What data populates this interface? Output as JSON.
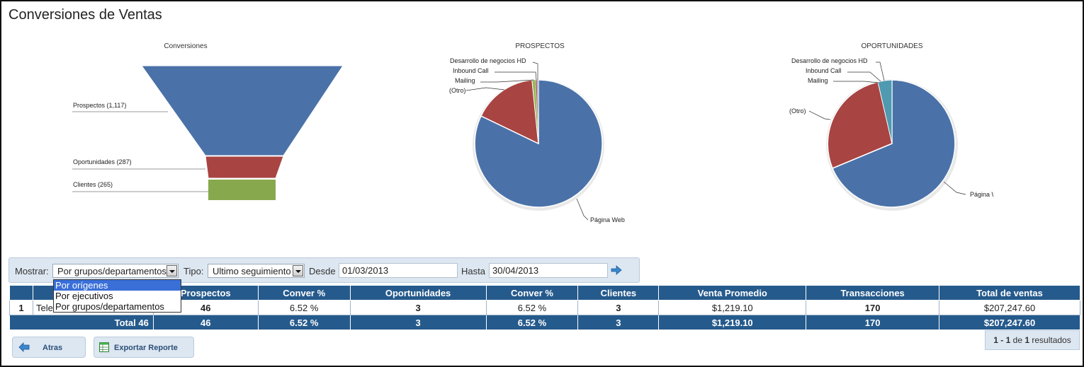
{
  "page": {
    "title": "Conversiones de Ventas"
  },
  "charts": {
    "funnel": {
      "title": "Conversiones",
      "stages": [
        {
          "label": "Prospectos",
          "value": "(1,117)",
          "color": "#4a72a8"
        },
        {
          "label": "Oportunidades",
          "value": "(287)",
          "color": "#a84442"
        },
        {
          "label": "Clientes",
          "value": "(265)",
          "color": "#88a84e"
        }
      ]
    },
    "prospectos": {
      "title": "PROSPECTOS",
      "labels": [
        "Desarrollo de negocios HD",
        "Inbound Call",
        "Mailing",
        "(Otro)",
        "Página Web"
      ]
    },
    "oportunidades": {
      "title": "OPORTUNIDADES",
      "labels": [
        "Desarrollo de negocios HD",
        "Inbound Call",
        "Mailing",
        "(Otro)",
        "Página Web"
      ]
    }
  },
  "chart_data": [
    {
      "type": "funnel",
      "title": "Conversiones",
      "categories": [
        "Prospectos",
        "Oportunidades",
        "Clientes"
      ],
      "values": [
        1117,
        287,
        265
      ]
    },
    {
      "type": "pie",
      "title": "PROSPECTOS",
      "categories": [
        "Desarrollo de negocios HD",
        "Inbound Call",
        "Mailing",
        "(Otro)",
        "Página Web"
      ],
      "values": [
        0.3,
        0.3,
        0.8,
        15.3,
        83.3
      ],
      "colors": [
        "#8aa8c8",
        "#a84442",
        "#98b85a",
        "#a84442",
        "#4a72a8"
      ]
    },
    {
      "type": "pie",
      "title": "OPORTUNIDADES",
      "categories": [
        "Desarrollo de negocios HD",
        "Inbound Call",
        "Mailing",
        "(Otro)",
        "Página Web"
      ],
      "values": [
        3.5,
        0.7,
        0.7,
        24.4,
        70.7
      ],
      "colors": [
        "#4f9ab0",
        "#98b85a",
        "#a84442",
        "#a84442",
        "#4a72a8"
      ]
    }
  ],
  "filters": {
    "mostrar_label": "Mostrar:",
    "mostrar_value": "Por grupos/departamentos",
    "mostrar_options": [
      "Por orígenes",
      "Por ejecutivos",
      "Por grupos/departamentos"
    ],
    "tipo_label": "Tipo:",
    "tipo_value": "Ultimo seguimiento",
    "desde_label": "Desde",
    "desde_value": "01/03/2013",
    "hasta_label": "Hasta",
    "hasta_value": "30/04/2013"
  },
  "table": {
    "headers": [
      "",
      "",
      "Prospectos",
      "Conver %",
      "Oportunidades",
      "Conver %",
      "Clientes",
      "Venta Promedio",
      "Transacciones",
      "Total de ventas"
    ],
    "row": {
      "num": "1",
      "name": "Tele",
      "prospectos": "46",
      "conver1": "6.52 %",
      "oportunidades": "3",
      "conver2": "6.52 %",
      "clientes": "3",
      "venta_promedio": "$1,219.10",
      "transacciones": "170",
      "total_ventas": "$207,247.60"
    },
    "total": {
      "label": "Total 46",
      "prospectos": "46",
      "conver1": "6.52 %",
      "oportunidades": "3",
      "conver2": "6.52 %",
      "clientes": "3",
      "venta_promedio": "$1,219.10",
      "transacciones": "170",
      "total_ventas": "$207,247.60"
    }
  },
  "buttons": {
    "atras": "Atras",
    "exportar": "Exportar Reporte"
  },
  "pager": {
    "from": "1",
    "sep": " - ",
    "to": "1",
    "de": " de ",
    "count": "1",
    "suffix": " resultados"
  }
}
